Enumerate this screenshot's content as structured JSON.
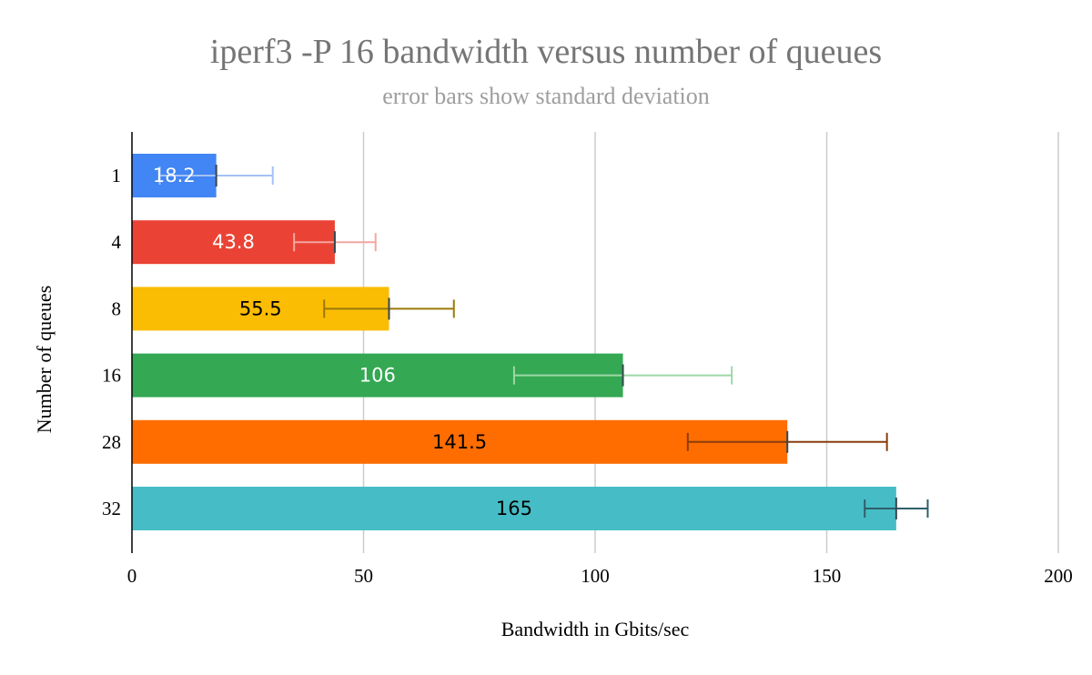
{
  "chart_data": {
    "type": "bar",
    "orientation": "horizontal",
    "title": "iperf3  -P 16 bandwidth versus number of queues",
    "subtitle": "error bars show standard deviation",
    "xlabel": "Bandwidth in Gbits/sec",
    "ylabel": "Number of queues",
    "xlim": [
      0,
      200
    ],
    "xticks": [
      0,
      50,
      100,
      150,
      200
    ],
    "grid": true,
    "legend": "none",
    "categories": [
      "1",
      "4",
      "8",
      "16",
      "28",
      "32"
    ],
    "values": [
      18.2,
      43.8,
      55.5,
      106,
      141.5,
      165
    ],
    "data_labels": [
      "18.2",
      "43.8",
      "55.5",
      "106",
      "141.5",
      "165"
    ],
    "error": [
      12.2,
      8.8,
      14,
      23.5,
      21.5,
      6.8
    ],
    "bar_colors": [
      "#4285f4",
      "#ea4335",
      "#fbbc04",
      "#34a853",
      "#ff6d01",
      "#46bdc6"
    ],
    "error_colors": [
      "#a4c2f4",
      "#f4a6a0",
      "#9a7a0a",
      "#9ed8a8",
      "#8a3d0c",
      "#2e5f6a"
    ],
    "label_colors": [
      "#ffffff",
      "#ffffff",
      "#000000",
      "#ffffff",
      "#000000",
      "#000000"
    ]
  }
}
